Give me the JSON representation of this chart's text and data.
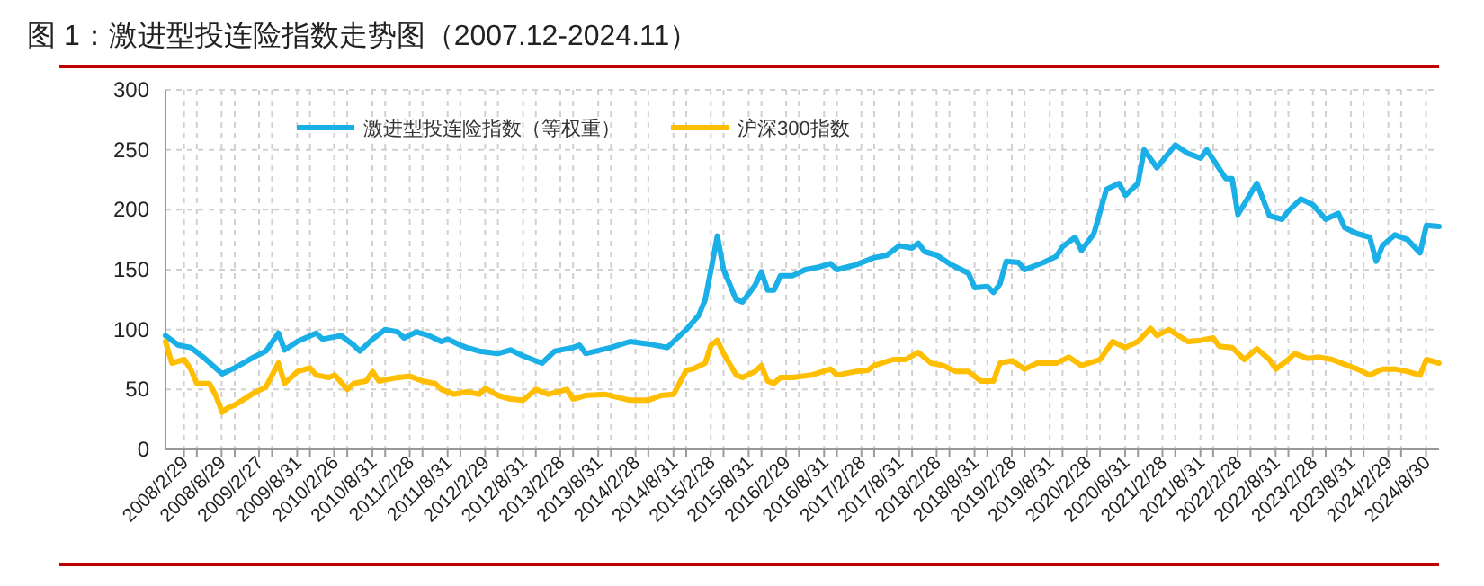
{
  "chart_data": {
    "type": "line",
    "title": "图 1：激进型投连险指数走势图（2007.12-2024.11）",
    "legend": "top",
    "grid": true,
    "line_style": "solid",
    "xlim": [
      "2007-12",
      "2024-11"
    ],
    "ylim": [
      0,
      300
    ],
    "yticks": [
      0,
      50,
      100,
      150,
      200,
      250,
      300
    ],
    "xticks": [
      {
        "value": "2008-02-29",
        "label": "2008/2/29"
      },
      {
        "value": "2008-05",
        "label": null
      },
      {
        "value": "2008-08-29",
        "label": "2008/8/29"
      },
      {
        "value": "2008-11",
        "label": null
      },
      {
        "value": "2009-02-27",
        "label": "2009/2/27"
      },
      {
        "value": "2009-05",
        "label": null
      },
      {
        "value": "2009-08-31",
        "label": "2009/8/31"
      },
      {
        "value": "2009-11",
        "label": null
      },
      {
        "value": "2010-02-26",
        "label": "2010/2/26"
      },
      {
        "value": "2010-05",
        "label": null
      },
      {
        "value": "2010-08-31",
        "label": "2010/8/31"
      },
      {
        "value": "2010-11",
        "label": null
      },
      {
        "value": "2011-02-28",
        "label": "2011/2/28"
      },
      {
        "value": "2011-05",
        "label": null
      },
      {
        "value": "2011-08-31",
        "label": "2011/8/31"
      },
      {
        "value": "2011-11",
        "label": null
      },
      {
        "value": "2012-02-29",
        "label": "2012/2/29"
      },
      {
        "value": "2012-05",
        "label": null
      },
      {
        "value": "2012-08-31",
        "label": "2012/8/31"
      },
      {
        "value": "2012-11",
        "label": null
      },
      {
        "value": "2013-02-28",
        "label": "2013/2/28"
      },
      {
        "value": "2013-05",
        "label": null
      },
      {
        "value": "2013-08-31",
        "label": "2013/8/31"
      },
      {
        "value": "2013-11",
        "label": null
      },
      {
        "value": "2014-02-28",
        "label": "2014/2/28"
      },
      {
        "value": "2014-05",
        "label": null
      },
      {
        "value": "2014-08-31",
        "label": "2014/8/31"
      },
      {
        "value": "2014-11",
        "label": null
      },
      {
        "value": "2015-02-28",
        "label": "2015/2/28"
      },
      {
        "value": "2015-05",
        "label": null
      },
      {
        "value": "2015-08-31",
        "label": "2015/8/31"
      },
      {
        "value": "2015-11",
        "label": null
      },
      {
        "value": "2016-02-29",
        "label": "2016/2/29"
      },
      {
        "value": "2016-05",
        "label": null
      },
      {
        "value": "2016-08-31",
        "label": "2016/8/31"
      },
      {
        "value": "2016-11",
        "label": null
      },
      {
        "value": "2017-02-28",
        "label": "2017/2/28"
      },
      {
        "value": "2017-05",
        "label": null
      },
      {
        "value": "2017-08-31",
        "label": "2017/8/31"
      },
      {
        "value": "2017-11",
        "label": null
      },
      {
        "value": "2018-02-28",
        "label": "2018/2/28"
      },
      {
        "value": "2018-05",
        "label": null
      },
      {
        "value": "2018-08-31",
        "label": "2018/8/31"
      },
      {
        "value": "2018-11",
        "label": null
      },
      {
        "value": "2019-02-28",
        "label": "2019/2/28"
      },
      {
        "value": "2019-05",
        "label": null
      },
      {
        "value": "2019-08-31",
        "label": "2019/8/31"
      },
      {
        "value": "2019-11",
        "label": null
      },
      {
        "value": "2020-02-28",
        "label": "2020/2/28"
      },
      {
        "value": "2020-05",
        "label": null
      },
      {
        "value": "2020-08-31",
        "label": "2020/8/31"
      },
      {
        "value": "2020-11",
        "label": null
      },
      {
        "value": "2021-02-28",
        "label": "2021/2/28"
      },
      {
        "value": "2021-05",
        "label": null
      },
      {
        "value": "2021-08-31",
        "label": "2021/8/31"
      },
      {
        "value": "2021-11",
        "label": null
      },
      {
        "value": "2022-02-28",
        "label": "2022/2/28"
      },
      {
        "value": "2022-05",
        "label": null
      },
      {
        "value": "2022-08-31",
        "label": "2022/8/31"
      },
      {
        "value": "2022-11",
        "label": null
      },
      {
        "value": "2023-02-28",
        "label": "2023/2/28"
      },
      {
        "value": "2023-05",
        "label": null
      },
      {
        "value": "2023-08-31",
        "label": "2023/8/31"
      },
      {
        "value": "2023-11",
        "label": null
      },
      {
        "value": "2024-02-29",
        "label": "2024/2/29"
      },
      {
        "value": "2024-05",
        "label": null
      },
      {
        "value": "2024-08-30",
        "label": "2024/8/30"
      }
    ],
    "series": [
      {
        "name": "激进型投连险指数（等权重）",
        "color": "#1aafe6",
        "x": [
          "2007-12",
          "2008-02",
          "2008-04",
          "2008-06",
          "2008-09",
          "2008-11",
          "2009-02",
          "2009-04",
          "2009-06",
          "2009-07",
          "2009-09",
          "2009-12",
          "2010-01",
          "2010-04",
          "2010-06",
          "2010-07",
          "2010-09",
          "2010-11",
          "2011-01",
          "2011-02",
          "2011-04",
          "2011-06",
          "2011-08",
          "2011-09",
          "2011-11",
          "2011-12",
          "2012-02",
          "2012-05",
          "2012-07",
          "2012-09",
          "2012-12",
          "2013-02",
          "2013-05",
          "2013-06",
          "2013-07",
          "2013-11",
          "2014-02",
          "2014-05",
          "2014-08",
          "2014-11",
          "2015-01",
          "2015-02",
          "2015-03",
          "2015-04",
          "2015-05",
          "2015-07",
          "2015-08",
          "2015-10",
          "2015-11",
          "2015-12",
          "2016-01",
          "2016-02",
          "2016-04",
          "2016-06",
          "2016-08",
          "2016-10",
          "2016-11",
          "2017-02",
          "2017-05",
          "2017-07",
          "2017-09",
          "2017-11",
          "2017-12",
          "2018-01",
          "2018-03",
          "2018-05",
          "2018-08",
          "2018-09",
          "2018-11",
          "2018-12",
          "2019-01",
          "2019-02",
          "2019-04",
          "2019-05",
          "2019-08",
          "2019-10",
          "2019-11",
          "2020-01",
          "2020-02",
          "2020-04",
          "2020-06",
          "2020-08",
          "2020-09",
          "2020-11",
          "2020-12",
          "2021-02",
          "2021-05",
          "2021-07",
          "2021-09",
          "2021-10",
          "2022-01",
          "2022-02",
          "2022-03",
          "2022-06",
          "2022-08",
          "2022-10",
          "2022-11",
          "2023-01",
          "2023-03",
          "2023-05",
          "2023-07",
          "2023-08",
          "2023-10",
          "2023-12",
          "2024-01",
          "2024-02",
          "2024-04",
          "2024-06",
          "2024-08",
          "2024-09",
          "2024-11"
        ],
        "values": [
          95,
          87,
          85,
          77,
          63,
          68,
          77,
          82,
          97,
          83,
          90,
          97,
          92,
          95,
          87,
          82,
          92,
          100,
          98,
          93,
          98,
          95,
          90,
          92,
          87,
          85,
          82,
          80,
          83,
          78,
          72,
          82,
          85,
          87,
          80,
          85,
          90,
          88,
          85,
          100,
          112,
          125,
          150,
          178,
          150,
          125,
          123,
          137,
          148,
          133,
          133,
          145,
          145,
          150,
          152,
          155,
          150,
          154,
          160,
          162,
          170,
          168,
          172,
          165,
          162,
          155,
          147,
          135,
          136,
          131,
          138,
          157,
          156,
          150,
          156,
          161,
          169,
          177,
          166,
          180,
          217,
          222,
          212,
          222,
          250,
          235,
          254,
          247,
          243,
          250,
          226,
          226,
          196,
          222,
          195,
          192,
          199,
          209,
          204,
          192,
          197,
          185,
          180,
          177,
          157,
          170,
          179,
          175,
          164,
          187,
          186
        ]
      },
      {
        "name": "沪深300指数",
        "color": "#ffbe00",
        "x": [
          "2007-12",
          "2008-01",
          "2008-03",
          "2008-04",
          "2008-05",
          "2008-07",
          "2008-08",
          "2008-09",
          "2008-10",
          "2008-11",
          "2009-02",
          "2009-04",
          "2009-06",
          "2009-07",
          "2009-09",
          "2009-11",
          "2009-12",
          "2010-02",
          "2010-03",
          "2010-05",
          "2010-06",
          "2010-08",
          "2010-09",
          "2010-10",
          "2011-01",
          "2011-03",
          "2011-05",
          "2011-07",
          "2011-08",
          "2011-10",
          "2011-12",
          "2012-02",
          "2012-03",
          "2012-05",
          "2012-07",
          "2012-09",
          "2012-11",
          "2013-01",
          "2013-04",
          "2013-05",
          "2013-07",
          "2013-10",
          "2014-02",
          "2014-05",
          "2014-07",
          "2014-09",
          "2014-11",
          "2014-12",
          "2015-02",
          "2015-03",
          "2015-04",
          "2015-05",
          "2015-07",
          "2015-08",
          "2015-10",
          "2015-11",
          "2015-12",
          "2016-01",
          "2016-02",
          "2016-04",
          "2016-07",
          "2016-10",
          "2016-11",
          "2017-02",
          "2017-04",
          "2017-05",
          "2017-08",
          "2017-10",
          "2017-12",
          "2018-02",
          "2018-04",
          "2018-06",
          "2018-08",
          "2018-10",
          "2018-12",
          "2019-01",
          "2019-03",
          "2019-05",
          "2019-07",
          "2019-10",
          "2019-12",
          "2020-02",
          "2020-05",
          "2020-07",
          "2020-09",
          "2020-11",
          "2021-01",
          "2021-02",
          "2021-04",
          "2021-07",
          "2021-09",
          "2021-11",
          "2021-12",
          "2022-02",
          "2022-04",
          "2022-06",
          "2022-08",
          "2022-09",
          "2022-11",
          "2022-12",
          "2023-02",
          "2023-04",
          "2023-06",
          "2023-08",
          "2023-10",
          "2023-12",
          "2024-02",
          "2024-04",
          "2024-06",
          "2024-08",
          "2024-09",
          "2024-11"
        ],
        "values": [
          90,
          72,
          75,
          67,
          55,
          55,
          45,
          31,
          35,
          37,
          47,
          52,
          72,
          55,
          65,
          68,
          62,
          60,
          62,
          50,
          55,
          57,
          65,
          57,
          60,
          61,
          57,
          55,
          50,
          46,
          48,
          46,
          51,
          45,
          42,
          41,
          50,
          46,
          50,
          42,
          45,
          46,
          41,
          41,
          45,
          46,
          66,
          67,
          72,
          87,
          91,
          80,
          62,
          60,
          65,
          70,
          57,
          55,
          60,
          60,
          62,
          67,
          62,
          65,
          66,
          70,
          75,
          75,
          81,
          72,
          70,
          65,
          65,
          57,
          57,
          72,
          74,
          67,
          72,
          72,
          77,
          70,
          75,
          90,
          85,
          90,
          101,
          95,
          100,
          90,
          91,
          93,
          86,
          85,
          75,
          84,
          75,
          67,
          75,
          80,
          76,
          77,
          75,
          71,
          67,
          62,
          67,
          67,
          65,
          62,
          75,
          72
        ]
      }
    ]
  }
}
